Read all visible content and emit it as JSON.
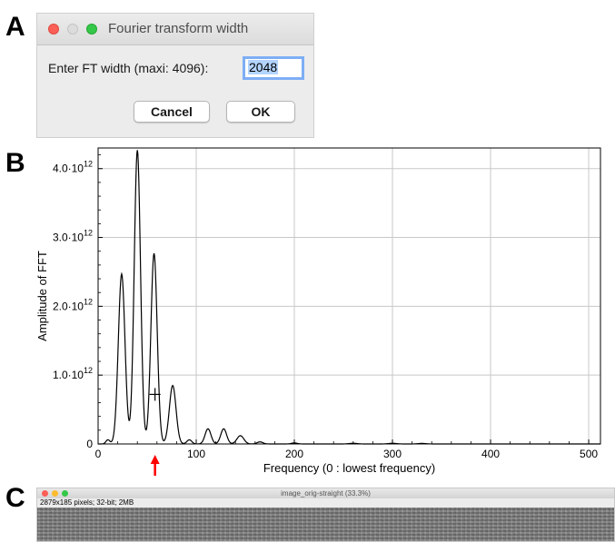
{
  "panels": {
    "a": "A",
    "b": "B",
    "c": "C"
  },
  "dialog": {
    "title": "Fourier transform width",
    "prompt": "Enter FT width (maxi: 4096):",
    "input_value": "2048",
    "cancel_label": "Cancel",
    "ok_label": "OK"
  },
  "chart_data": {
    "type": "line",
    "xlabel": "Frequency (0 : lowest frequency)",
    "ylabel": "Amplitude of FFT",
    "xlim": [
      0,
      512
    ],
    "ylim": [
      0,
      4300000000000.0
    ],
    "grid": true,
    "x_ticks": [
      0,
      100,
      200,
      300,
      400,
      500
    ],
    "y_ticks": [
      {
        "value": 0,
        "label": "0"
      },
      {
        "value": 1000000000000.0,
        "base": "1.0·10",
        "exp": "12"
      },
      {
        "value": 2000000000000.0,
        "base": "2.0·10",
        "exp": "12"
      },
      {
        "value": 3000000000000.0,
        "base": "3.0·10",
        "exp": "12"
      },
      {
        "value": 4000000000000.0,
        "base": "4.0·10",
        "exp": "12"
      }
    ],
    "series": [
      {
        "peaks": [
          {
            "x": 10,
            "y": 60000000000.0,
            "w": 2.0
          },
          {
            "x": 24,
            "y": 2470000000000.0,
            "w": 3.4
          },
          {
            "x": 40,
            "y": 4270000000000.0,
            "w": 3.2
          },
          {
            "x": 57,
            "y": 2770000000000.0,
            "w": 3.2
          },
          {
            "x": 76,
            "y": 850000000000.0,
            "w": 3.4
          },
          {
            "x": 93,
            "y": 60000000000.0,
            "w": 2.5
          },
          {
            "x": 112,
            "y": 220000000000.0,
            "w": 3.0
          },
          {
            "x": 128,
            "y": 220000000000.0,
            "w": 3.0
          },
          {
            "x": 145,
            "y": 120000000000.0,
            "w": 3.5
          },
          {
            "x": 165,
            "y": 30000000000.0,
            "w": 3.0
          },
          {
            "x": 200,
            "y": 15000000000.0,
            "w": 3.0
          },
          {
            "x": 260,
            "y": 10000000000.0,
            "w": 4.0
          },
          {
            "x": 300,
            "y": 10000000000.0,
            "w": 4.0
          },
          {
            "x": 330,
            "y": 8000000000.0,
            "w": 4.0
          }
        ]
      }
    ],
    "cursor": {
      "x": 58,
      "y": 720000000000.0
    },
    "arrow_x": 58,
    "arrow_color": "#ff0000"
  },
  "image_window": {
    "title": "image_orig-straight (33.3%)",
    "info": "2879x185 pixels; 32-bit; 2MB"
  }
}
